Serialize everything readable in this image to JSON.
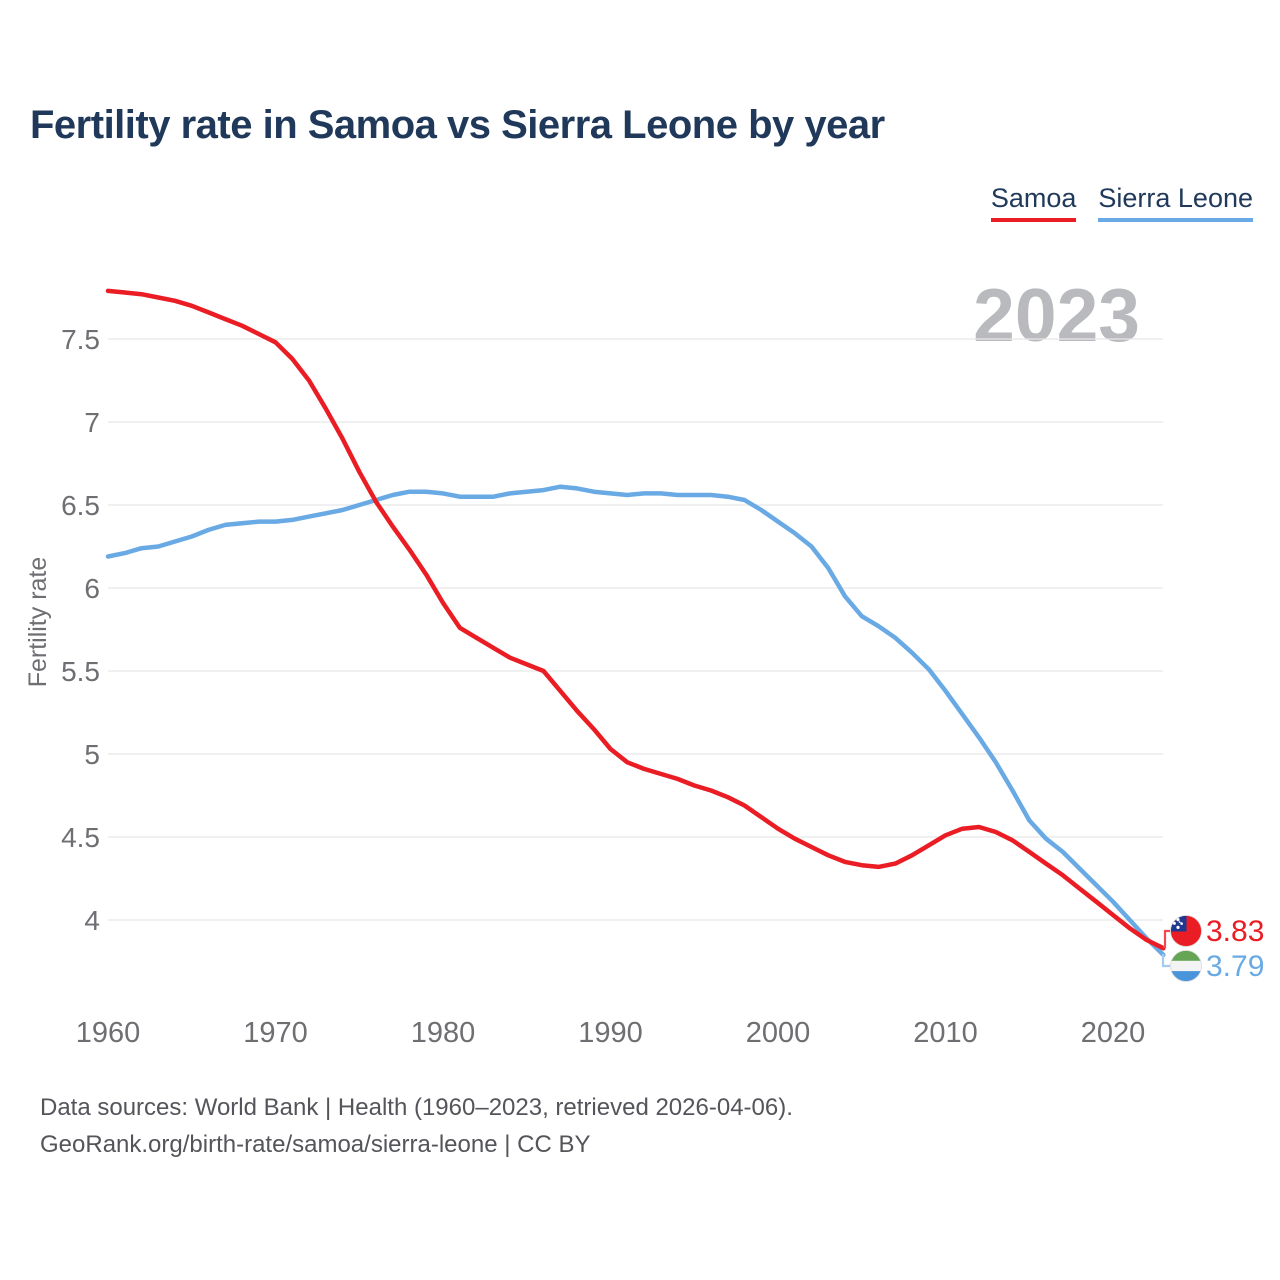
{
  "title": "Fertility rate in Samoa vs Sierra Leone by year",
  "watermark": "2023",
  "legend": [
    {
      "label": "Samoa",
      "color": "#ea1d25"
    },
    {
      "label": "Sierra Leone",
      "color": "#6aaae4"
    }
  ],
  "end_labels": [
    {
      "series": "Samoa",
      "value": "3.83"
    },
    {
      "series": "Sierra Leone",
      "value": "3.79"
    }
  ],
  "footer": {
    "line1": "Data sources: World Bank | Health (1960–2023, retrieved 2026-04-06).",
    "line2": "GeoRank.org/birth-rate/samoa/sierra-leone | CC BY"
  },
  "colors": {
    "title": "#20395a",
    "samoa": "#ea1d25",
    "sierra_leone": "#6aaae4",
    "grid": "#e8e8e8",
    "axis_text": "#6e6e73",
    "watermark": "#b8babd",
    "footer": "#54555a"
  },
  "chart_data": {
    "type": "line",
    "title": "Fertility rate in Samoa vs Sierra Leone by year",
    "xlabel": "",
    "ylabel": "Fertility rate",
    "grid": "horizontal",
    "legend_position": "top-right",
    "xticks": [
      1960,
      1970,
      1980,
      1990,
      2000,
      2010,
      2020
    ],
    "yticks": [
      4,
      4.5,
      5,
      5.5,
      6,
      6.5,
      7,
      7.5
    ],
    "ylim": [
      3.75,
      7.85
    ],
    "xlim": [
      1960,
      2023
    ],
    "x": [
      1960,
      1961,
      1962,
      1963,
      1964,
      1965,
      1966,
      1967,
      1968,
      1969,
      1970,
      1971,
      1972,
      1973,
      1974,
      1975,
      1976,
      1977,
      1978,
      1979,
      1980,
      1981,
      1982,
      1983,
      1984,
      1985,
      1986,
      1987,
      1988,
      1989,
      1990,
      1991,
      1992,
      1993,
      1994,
      1995,
      1996,
      1997,
      1998,
      1999,
      2000,
      2001,
      2002,
      2003,
      2004,
      2005,
      2006,
      2007,
      2008,
      2009,
      2010,
      2011,
      2012,
      2013,
      2014,
      2015,
      2016,
      2017,
      2018,
      2019,
      2020,
      2021,
      2022,
      2023
    ],
    "series": [
      {
        "name": "Samoa",
        "color": "#ea1d25",
        "final_value": 3.83,
        "values": [
          7.79,
          7.78,
          7.77,
          7.75,
          7.73,
          7.7,
          7.66,
          7.62,
          7.58,
          7.53,
          7.48,
          7.38,
          7.25,
          7.08,
          6.9,
          6.7,
          6.52,
          6.37,
          6.23,
          6.08,
          5.91,
          5.76,
          5.7,
          5.64,
          5.58,
          5.54,
          5.5,
          5.38,
          5.26,
          5.15,
          5.03,
          4.95,
          4.91,
          4.88,
          4.85,
          4.81,
          4.78,
          4.74,
          4.69,
          4.62,
          4.55,
          4.49,
          4.44,
          4.39,
          4.35,
          4.33,
          4.32,
          4.34,
          4.39,
          4.45,
          4.51,
          4.55,
          4.56,
          4.53,
          4.48,
          4.41,
          4.34,
          4.27,
          4.19,
          4.11,
          4.03,
          3.95,
          3.88,
          3.83
        ]
      },
      {
        "name": "Sierra Leone",
        "color": "#6aaae4",
        "final_value": 3.79,
        "values": [
          6.19,
          6.21,
          6.24,
          6.25,
          6.28,
          6.31,
          6.35,
          6.38,
          6.39,
          6.4,
          6.4,
          6.41,
          6.43,
          6.45,
          6.47,
          6.5,
          6.53,
          6.56,
          6.58,
          6.58,
          6.57,
          6.55,
          6.55,
          6.55,
          6.57,
          6.58,
          6.59,
          6.61,
          6.6,
          6.58,
          6.57,
          6.56,
          6.57,
          6.57,
          6.56,
          6.56,
          6.56,
          6.55,
          6.53,
          6.47,
          6.4,
          6.33,
          6.25,
          6.12,
          5.95,
          5.83,
          5.77,
          5.7,
          5.61,
          5.51,
          5.38,
          5.24,
          5.1,
          4.95,
          4.78,
          4.6,
          4.49,
          4.41,
          4.31,
          4.21,
          4.11,
          4.0,
          3.89,
          3.79
        ]
      }
    ]
  }
}
